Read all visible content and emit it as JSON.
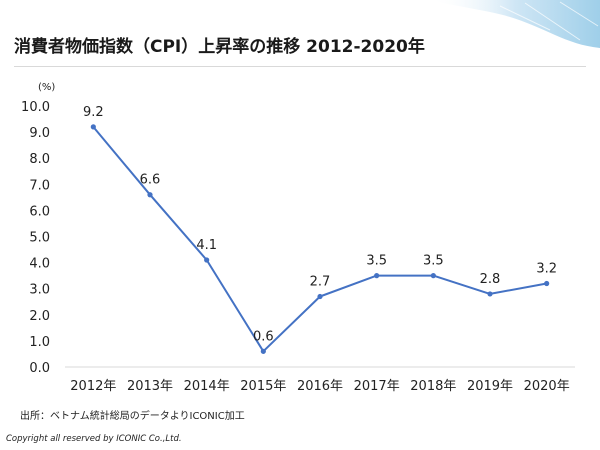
{
  "title": "消費者物価指数（CPI）上昇率の推移 2012-2020年",
  "source": "出所：ベトナム統計総局のデータよりICONIC加工",
  "copyright": "Copyright all reserved by ICONIC Co.,Ltd.",
  "colors": {
    "line": "#4472c4",
    "text": "#222222",
    "grid": "#d9d9d9"
  },
  "chart_data": {
    "type": "line",
    "unit_label": "(%)",
    "categories": [
      "2012年",
      "2013年",
      "2014年",
      "2015年",
      "2016年",
      "2017年",
      "2018年",
      "2019年",
      "2020年"
    ],
    "values": [
      9.2,
      6.6,
      4.1,
      0.6,
      2.7,
      3.5,
      3.5,
      2.8,
      3.2
    ],
    "data_labels": [
      "9.2",
      "6.6",
      "4.1",
      "0.6",
      "2.7",
      "3.5",
      "3.5",
      "2.8",
      "3.2"
    ],
    "y_ticks": [
      "0.0",
      "1.0",
      "2.0",
      "3.0",
      "4.0",
      "5.0",
      "6.0",
      "7.0",
      "8.0",
      "9.0",
      "10.0"
    ],
    "ylim": [
      0,
      10
    ],
    "grid": false,
    "legend": "none"
  }
}
